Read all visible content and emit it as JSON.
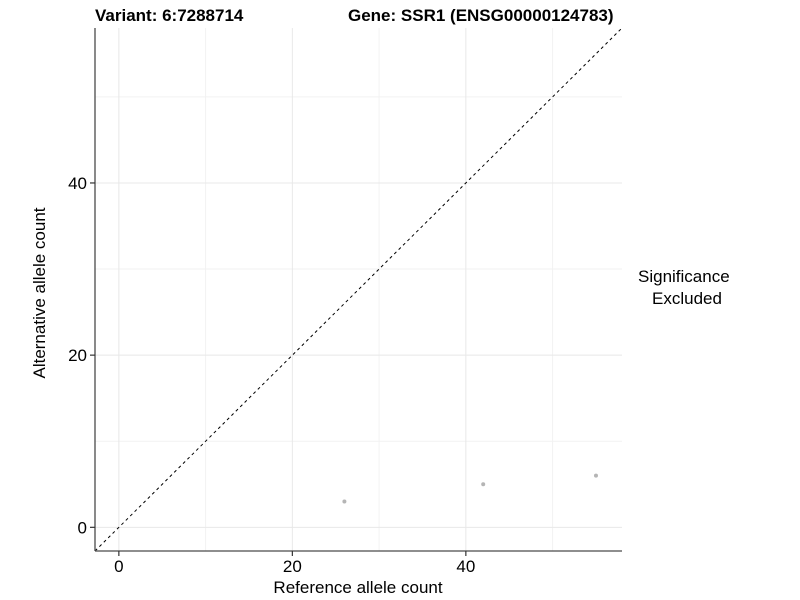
{
  "chart_data": {
    "type": "scatter",
    "title_left": "Variant: 6:7288714",
    "title_right": "Gene: SSR1 (ENSG00000124783)",
    "xlabel": "Reference allele count",
    "ylabel": "Alternative allele count",
    "xlim": [
      -2.75,
      58
    ],
    "ylim": [
      -2.75,
      58
    ],
    "x_ticks": [
      0,
      20,
      40
    ],
    "y_ticks": [
      0,
      20,
      40
    ],
    "x_minor_ticks": [
      10,
      30,
      50
    ],
    "y_minor_ticks": [
      10,
      30,
      50
    ],
    "grid": "major and minor, light gray, on white panel",
    "identity_line": {
      "type": "y=x",
      "style": "dashed",
      "color": "#000000"
    },
    "series": [
      {
        "name": "Excluded",
        "color": "#b5b5b5",
        "points": [
          {
            "x": 26,
            "y": 3
          },
          {
            "x": 42,
            "y": 5
          },
          {
            "x": 55,
            "y": 6
          }
        ]
      }
    ],
    "legend": {
      "title": "Significance",
      "position": "right",
      "items": [
        {
          "label": "Excluded",
          "color": "#b5b5b5"
        }
      ]
    },
    "colors": {
      "background": "#ffffff",
      "grid_major": "#e8e8e8",
      "grid_minor": "#f2f2f2",
      "axis_line": "#4a4a4a",
      "tick_mark": "#333333",
      "tick_label": "#000000",
      "point": "#b5b5b5",
      "reference_line": "#000000"
    }
  }
}
